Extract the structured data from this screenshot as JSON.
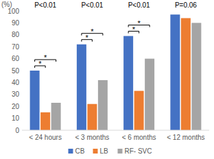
{
  "chart_data": {
    "type": "bar",
    "y_label": "(%)",
    "categories": [
      "< 24 hours",
      "< 3 months",
      "< 6 months",
      "< 12 months"
    ],
    "series": [
      {
        "name": "CB",
        "color": "#4472c4",
        "values": [
          50,
          72,
          79,
          97
        ]
      },
      {
        "name": "LB",
        "color": "#ed7d31",
        "values": [
          15,
          22,
          33,
          94
        ]
      },
      {
        "name": "RF- SVC",
        "color": "#a5a5a5",
        "values": [
          23,
          42,
          60,
          90
        ]
      }
    ],
    "ylim": [
      0,
      100
    ],
    "yticks": [
      0,
      10,
      20,
      30,
      40,
      50,
      60,
      70,
      80,
      90,
      100
    ],
    "grid": false,
    "legend": "bottom",
    "annotations": [
      {
        "category": 0,
        "text": "P<0.01"
      },
      {
        "category": 1,
        "text": "P<0.01"
      },
      {
        "category": 2,
        "text": "P<0.01"
      },
      {
        "category": 3,
        "text": "P=0.06"
      }
    ],
    "significance": [
      {
        "category": 0,
        "series": [
          0,
          1
        ],
        "label": "*"
      },
      {
        "category": 0,
        "series": [
          0,
          2
        ],
        "label": "*"
      },
      {
        "category": 1,
        "series": [
          0,
          1
        ],
        "label": "*"
      },
      {
        "category": 1,
        "series": [
          0,
          2
        ],
        "label": "*"
      },
      {
        "category": 2,
        "series": [
          0,
          1
        ],
        "label": "*"
      },
      {
        "category": 2,
        "series": [
          0,
          2
        ],
        "label": "*"
      }
    ]
  }
}
